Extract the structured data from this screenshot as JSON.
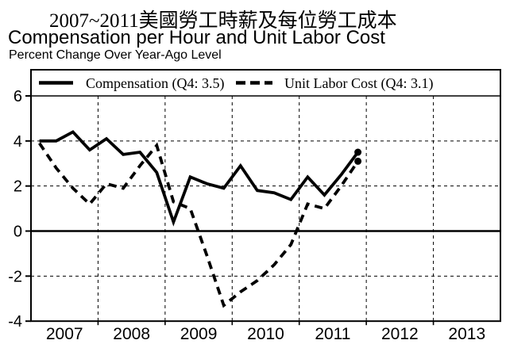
{
  "titles": {
    "main": "2007~2011美國勞工時薪及每位勞工成本",
    "subtitle": "Compensation per Hour and Unit Labor Cost",
    "note": "Percent Change Over Year-Ago Level"
  },
  "legend": {
    "position": "top",
    "items": [
      {
        "label": "Compensation (Q4: 3.5)",
        "swatch": "solid-line"
      },
      {
        "label": "Unit Labor Cost (Q4: 3.1)",
        "swatch": "dashed-line"
      }
    ]
  },
  "colors": {
    "line": "#000000",
    "background": "#ffffff",
    "grid": "#000000"
  },
  "chart_data": {
    "type": "line",
    "title": "Compensation per Hour and Unit Labor Cost",
    "subtitle": "Percent Change Over Year-Ago Level",
    "categories": [
      "2007 Q1",
      "2007 Q2",
      "2007 Q3",
      "2007 Q4",
      "2008 Q1",
      "2008 Q2",
      "2008 Q3",
      "2008 Q4",
      "2009 Q1",
      "2009 Q2",
      "2009 Q3",
      "2009 Q4",
      "2010 Q1",
      "2010 Q2",
      "2010 Q3",
      "2010 Q4",
      "2011 Q1",
      "2011 Q2",
      "2011 Q3",
      "2011 Q4"
    ],
    "series": [
      {
        "name": "Compensation",
        "line_style": "solid",
        "end_label": "Q4: 3.5",
        "end_marker": true,
        "values": [
          4.0,
          4.0,
          4.4,
          3.6,
          4.1,
          3.4,
          3.5,
          2.6,
          0.4,
          2.4,
          2.1,
          1.9,
          2.9,
          1.8,
          1.7,
          1.4,
          2.4,
          1.6,
          2.5,
          3.5
        ]
      },
      {
        "name": "Unit Labor Cost",
        "line_style": "dashed",
        "end_label": "Q4: 3.1",
        "end_marker": true,
        "values": [
          3.9,
          2.8,
          1.9,
          1.2,
          2.1,
          1.9,
          2.9,
          3.8,
          1.3,
          1.0,
          -1.1,
          -3.3,
          -2.7,
          -2.2,
          -1.5,
          -0.6,
          1.2,
          1.0,
          2.0,
          3.1
        ]
      }
    ],
    "x_axis": {
      "tick_labels": [
        "2007",
        "2008",
        "2009",
        "2010",
        "2011",
        "2012",
        "2013"
      ],
      "range_years": [
        2007,
        2014
      ]
    },
    "y_axis": {
      "tick_values": [
        6,
        4,
        2,
        0,
        -2,
        -4
      ],
      "tick_labels": [
        "6",
        "4",
        "2",
        "0",
        "-2",
        "-4"
      ],
      "ylim": [
        -4,
        6
      ]
    },
    "grid": {
      "horizontal_dashed_at": [
        4,
        2,
        -2
      ],
      "vertical_dashed_at_year_starts": [
        2008,
        2009,
        2010,
        2011,
        2012,
        2013
      ],
      "zero_line": true
    },
    "legend_position": "top-inside-box"
  }
}
